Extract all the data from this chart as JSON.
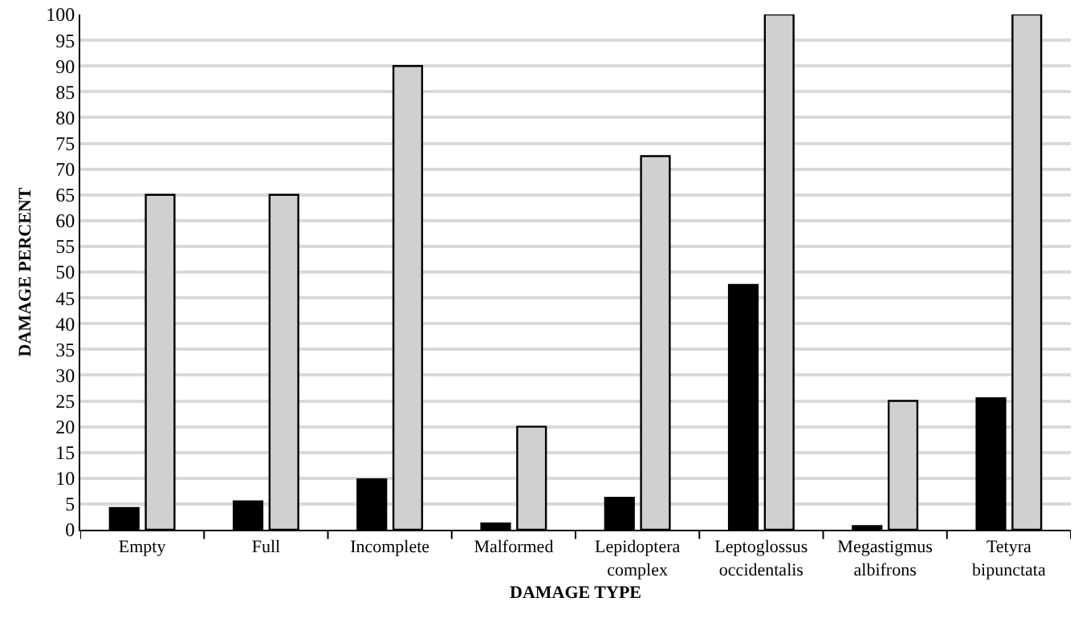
{
  "chart_data": {
    "type": "bar",
    "xlabel": "DAMAGE TYPE",
    "ylabel": "DAMAGE PERCENT",
    "categories": [
      "Empty",
      "Full",
      "Incomplete",
      "Malformed",
      "Lepidoptera complex",
      "Leptoglossus occidentalis",
      "Megastigmus albifrons",
      "Tetyra bipunctata"
    ],
    "series": [
      {
        "color": "#000000",
        "values": [
          4.2,
          5.5,
          9.8,
          1.2,
          6.2,
          47.5,
          0.7,
          25.5
        ]
      },
      {
        "color": "#d0d0d0",
        "values": [
          65,
          65,
          90,
          20,
          72.5,
          100,
          25,
          100
        ]
      }
    ],
    "ylim": [
      0,
      100
    ],
    "yticks": [
      0,
      5,
      10,
      15,
      20,
      25,
      30,
      35,
      40,
      45,
      50,
      55,
      60,
      65,
      70,
      75,
      80,
      85,
      90,
      95,
      100
    ],
    "grid": "y"
  }
}
